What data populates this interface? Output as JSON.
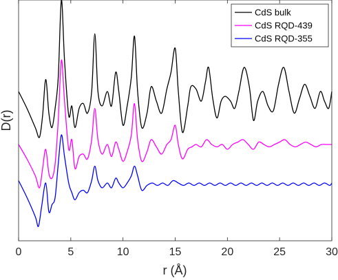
{
  "chart_data": {
    "type": "line",
    "title": "",
    "xlabel": "r (Å)",
    "ylabel": "D(r)",
    "xlim": [
      0,
      30
    ],
    "x_ticks": [
      0,
      5,
      10,
      15,
      20,
      25,
      30
    ],
    "y_ticks_shown": false,
    "grid": false,
    "legend_position": "top-right",
    "series": [
      {
        "name": "CdS bulk",
        "color": "#000000",
        "points": [
          [
            0,
            0.62
          ],
          [
            0.8,
            0.55
          ],
          [
            1.6,
            0.47
          ],
          [
            2.0,
            0.43
          ],
          [
            2.3,
            0.52
          ],
          [
            2.6,
            0.67
          ],
          [
            2.9,
            0.53
          ],
          [
            3.2,
            0.47
          ],
          [
            3.5,
            0.55
          ],
          [
            3.8,
            0.68
          ],
          [
            4.1,
            1.0
          ],
          [
            4.4,
            0.75
          ],
          [
            4.8,
            0.52
          ],
          [
            5.1,
            0.56
          ],
          [
            5.4,
            0.47
          ],
          [
            5.8,
            0.55
          ],
          [
            6.2,
            0.57
          ],
          [
            6.6,
            0.53
          ],
          [
            7.0,
            0.62
          ],
          [
            7.3,
            0.86
          ],
          [
            7.6,
            0.62
          ],
          [
            8.0,
            0.56
          ],
          [
            8.5,
            0.62
          ],
          [
            8.9,
            0.56
          ],
          [
            9.3,
            0.7
          ],
          [
            9.6,
            0.62
          ],
          [
            10.0,
            0.48
          ],
          [
            10.4,
            0.56
          ],
          [
            10.8,
            0.68
          ],
          [
            11.1,
            0.85
          ],
          [
            11.4,
            0.62
          ],
          [
            11.8,
            0.47
          ],
          [
            12.3,
            0.53
          ],
          [
            12.7,
            0.64
          ],
          [
            13.2,
            0.58
          ],
          [
            13.7,
            0.53
          ],
          [
            14.2,
            0.63
          ],
          [
            14.6,
            0.7
          ],
          [
            15.0,
            0.8
          ],
          [
            15.3,
            0.62
          ],
          [
            15.7,
            0.45
          ],
          [
            16.2,
            0.56
          ],
          [
            16.5,
            0.64
          ],
          [
            17.0,
            0.63
          ],
          [
            17.5,
            0.58
          ],
          [
            17.9,
            0.66
          ],
          [
            18.2,
            0.72
          ],
          [
            18.6,
            0.59
          ],
          [
            19.0,
            0.51
          ],
          [
            19.4,
            0.58
          ],
          [
            19.8,
            0.6
          ],
          [
            20.3,
            0.58
          ],
          [
            20.7,
            0.55
          ],
          [
            21.1,
            0.62
          ],
          [
            21.6,
            0.72
          ],
          [
            22.1,
            0.64
          ],
          [
            22.5,
            0.5
          ],
          [
            22.9,
            0.58
          ],
          [
            23.4,
            0.62
          ],
          [
            23.9,
            0.56
          ],
          [
            24.4,
            0.54
          ],
          [
            24.9,
            0.65
          ],
          [
            25.4,
            0.72
          ],
          [
            25.9,
            0.62
          ],
          [
            26.4,
            0.53
          ],
          [
            26.9,
            0.59
          ],
          [
            27.4,
            0.65
          ],
          [
            27.9,
            0.6
          ],
          [
            28.4,
            0.55
          ],
          [
            28.9,
            0.62
          ],
          [
            29.3,
            0.58
          ],
          [
            29.7,
            0.55
          ],
          [
            30.0,
            0.62
          ]
        ]
      },
      {
        "name": "CdS RQD-439",
        "color": "#ff00ff",
        "points": [
          [
            0,
            0.4
          ],
          [
            0.8,
            0.34
          ],
          [
            1.6,
            0.27
          ],
          [
            2.0,
            0.22
          ],
          [
            2.3,
            0.3
          ],
          [
            2.6,
            0.38
          ],
          [
            2.9,
            0.28
          ],
          [
            3.2,
            0.26
          ],
          [
            3.5,
            0.32
          ],
          [
            3.8,
            0.5
          ],
          [
            4.1,
            0.75
          ],
          [
            4.4,
            0.58
          ],
          [
            4.8,
            0.38
          ],
          [
            5.1,
            0.42
          ],
          [
            5.4,
            0.3
          ],
          [
            5.8,
            0.35
          ],
          [
            6.2,
            0.36
          ],
          [
            6.6,
            0.34
          ],
          [
            7.0,
            0.42
          ],
          [
            7.3,
            0.55
          ],
          [
            7.6,
            0.42
          ],
          [
            8.0,
            0.36
          ],
          [
            8.5,
            0.4
          ],
          [
            8.9,
            0.35
          ],
          [
            9.3,
            0.41
          ],
          [
            9.6,
            0.38
          ],
          [
            10.0,
            0.33
          ],
          [
            10.4,
            0.37
          ],
          [
            10.8,
            0.44
          ],
          [
            11.1,
            0.57
          ],
          [
            11.4,
            0.42
          ],
          [
            11.8,
            0.33
          ],
          [
            12.3,
            0.37
          ],
          [
            12.7,
            0.42
          ],
          [
            13.2,
            0.39
          ],
          [
            13.7,
            0.36
          ],
          [
            14.2,
            0.4
          ],
          [
            14.6,
            0.42
          ],
          [
            15.0,
            0.48
          ],
          [
            15.3,
            0.4
          ],
          [
            15.7,
            0.34
          ],
          [
            16.2,
            0.38
          ],
          [
            16.6,
            0.39
          ],
          [
            17.0,
            0.4
          ],
          [
            17.5,
            0.39
          ],
          [
            18.0,
            0.42
          ],
          [
            18.5,
            0.4
          ],
          [
            19.0,
            0.39
          ],
          [
            19.5,
            0.4
          ],
          [
            20.0,
            0.38
          ],
          [
            20.5,
            0.4
          ],
          [
            21.0,
            0.41
          ],
          [
            21.5,
            0.42
          ],
          [
            22.0,
            0.4
          ],
          [
            22.5,
            0.38
          ],
          [
            23.0,
            0.41
          ],
          [
            23.5,
            0.4
          ],
          [
            24.0,
            0.39
          ],
          [
            24.5,
            0.4
          ],
          [
            25.0,
            0.41
          ],
          [
            25.5,
            0.42
          ],
          [
            26.0,
            0.4
          ],
          [
            26.5,
            0.39
          ],
          [
            27.0,
            0.4
          ],
          [
            27.5,
            0.41
          ],
          [
            28.0,
            0.4
          ],
          [
            28.5,
            0.39
          ],
          [
            29.0,
            0.4
          ],
          [
            29.5,
            0.4
          ],
          [
            30.0,
            0.4
          ]
        ]
      },
      {
        "name": "CdS RQD-355",
        "color": "#0000ff",
        "points": [
          [
            0,
            0.25
          ],
          [
            0.8,
            0.18
          ],
          [
            1.6,
            0.1
          ],
          [
            1.9,
            0.06
          ],
          [
            2.2,
            0.14
          ],
          [
            2.6,
            0.24
          ],
          [
            2.9,
            0.12
          ],
          [
            3.2,
            0.15
          ],
          [
            3.5,
            0.18
          ],
          [
            3.8,
            0.32
          ],
          [
            4.1,
            0.44
          ],
          [
            4.4,
            0.35
          ],
          [
            4.8,
            0.24
          ],
          [
            5.1,
            0.2
          ],
          [
            5.4,
            0.17
          ],
          [
            5.8,
            0.2
          ],
          [
            6.2,
            0.21
          ],
          [
            6.6,
            0.2
          ],
          [
            7.0,
            0.25
          ],
          [
            7.3,
            0.31
          ],
          [
            7.6,
            0.25
          ],
          [
            8.0,
            0.22
          ],
          [
            8.5,
            0.24
          ],
          [
            8.9,
            0.22
          ],
          [
            9.3,
            0.26
          ],
          [
            9.6,
            0.24
          ],
          [
            10.0,
            0.22
          ],
          [
            10.4,
            0.24
          ],
          [
            10.8,
            0.27
          ],
          [
            11.1,
            0.31
          ],
          [
            11.4,
            0.27
          ],
          [
            11.8,
            0.21
          ],
          [
            12.3,
            0.23
          ],
          [
            12.8,
            0.24
          ],
          [
            13.3,
            0.23
          ],
          [
            13.8,
            0.24
          ],
          [
            14.3,
            0.23
          ],
          [
            14.8,
            0.25
          ],
          [
            15.3,
            0.24
          ],
          [
            15.8,
            0.23
          ],
          [
            16.3,
            0.24
          ],
          [
            16.8,
            0.23
          ],
          [
            17.3,
            0.24
          ],
          [
            17.8,
            0.23
          ],
          [
            18.3,
            0.24
          ],
          [
            18.8,
            0.23
          ],
          [
            19.3,
            0.24
          ],
          [
            19.8,
            0.23
          ],
          [
            20.3,
            0.24
          ],
          [
            20.8,
            0.23
          ],
          [
            21.3,
            0.24
          ],
          [
            21.8,
            0.23
          ],
          [
            22.3,
            0.24
          ],
          [
            22.8,
            0.23
          ],
          [
            23.3,
            0.24
          ],
          [
            23.8,
            0.23
          ],
          [
            24.3,
            0.24
          ],
          [
            24.8,
            0.23
          ],
          [
            25.3,
            0.24
          ],
          [
            25.8,
            0.23
          ],
          [
            26.3,
            0.24
          ],
          [
            26.8,
            0.23
          ],
          [
            27.3,
            0.24
          ],
          [
            27.8,
            0.23
          ],
          [
            28.3,
            0.24
          ],
          [
            28.8,
            0.23
          ],
          [
            29.3,
            0.24
          ],
          [
            29.8,
            0.23
          ],
          [
            30.0,
            0.24
          ]
        ]
      }
    ]
  }
}
